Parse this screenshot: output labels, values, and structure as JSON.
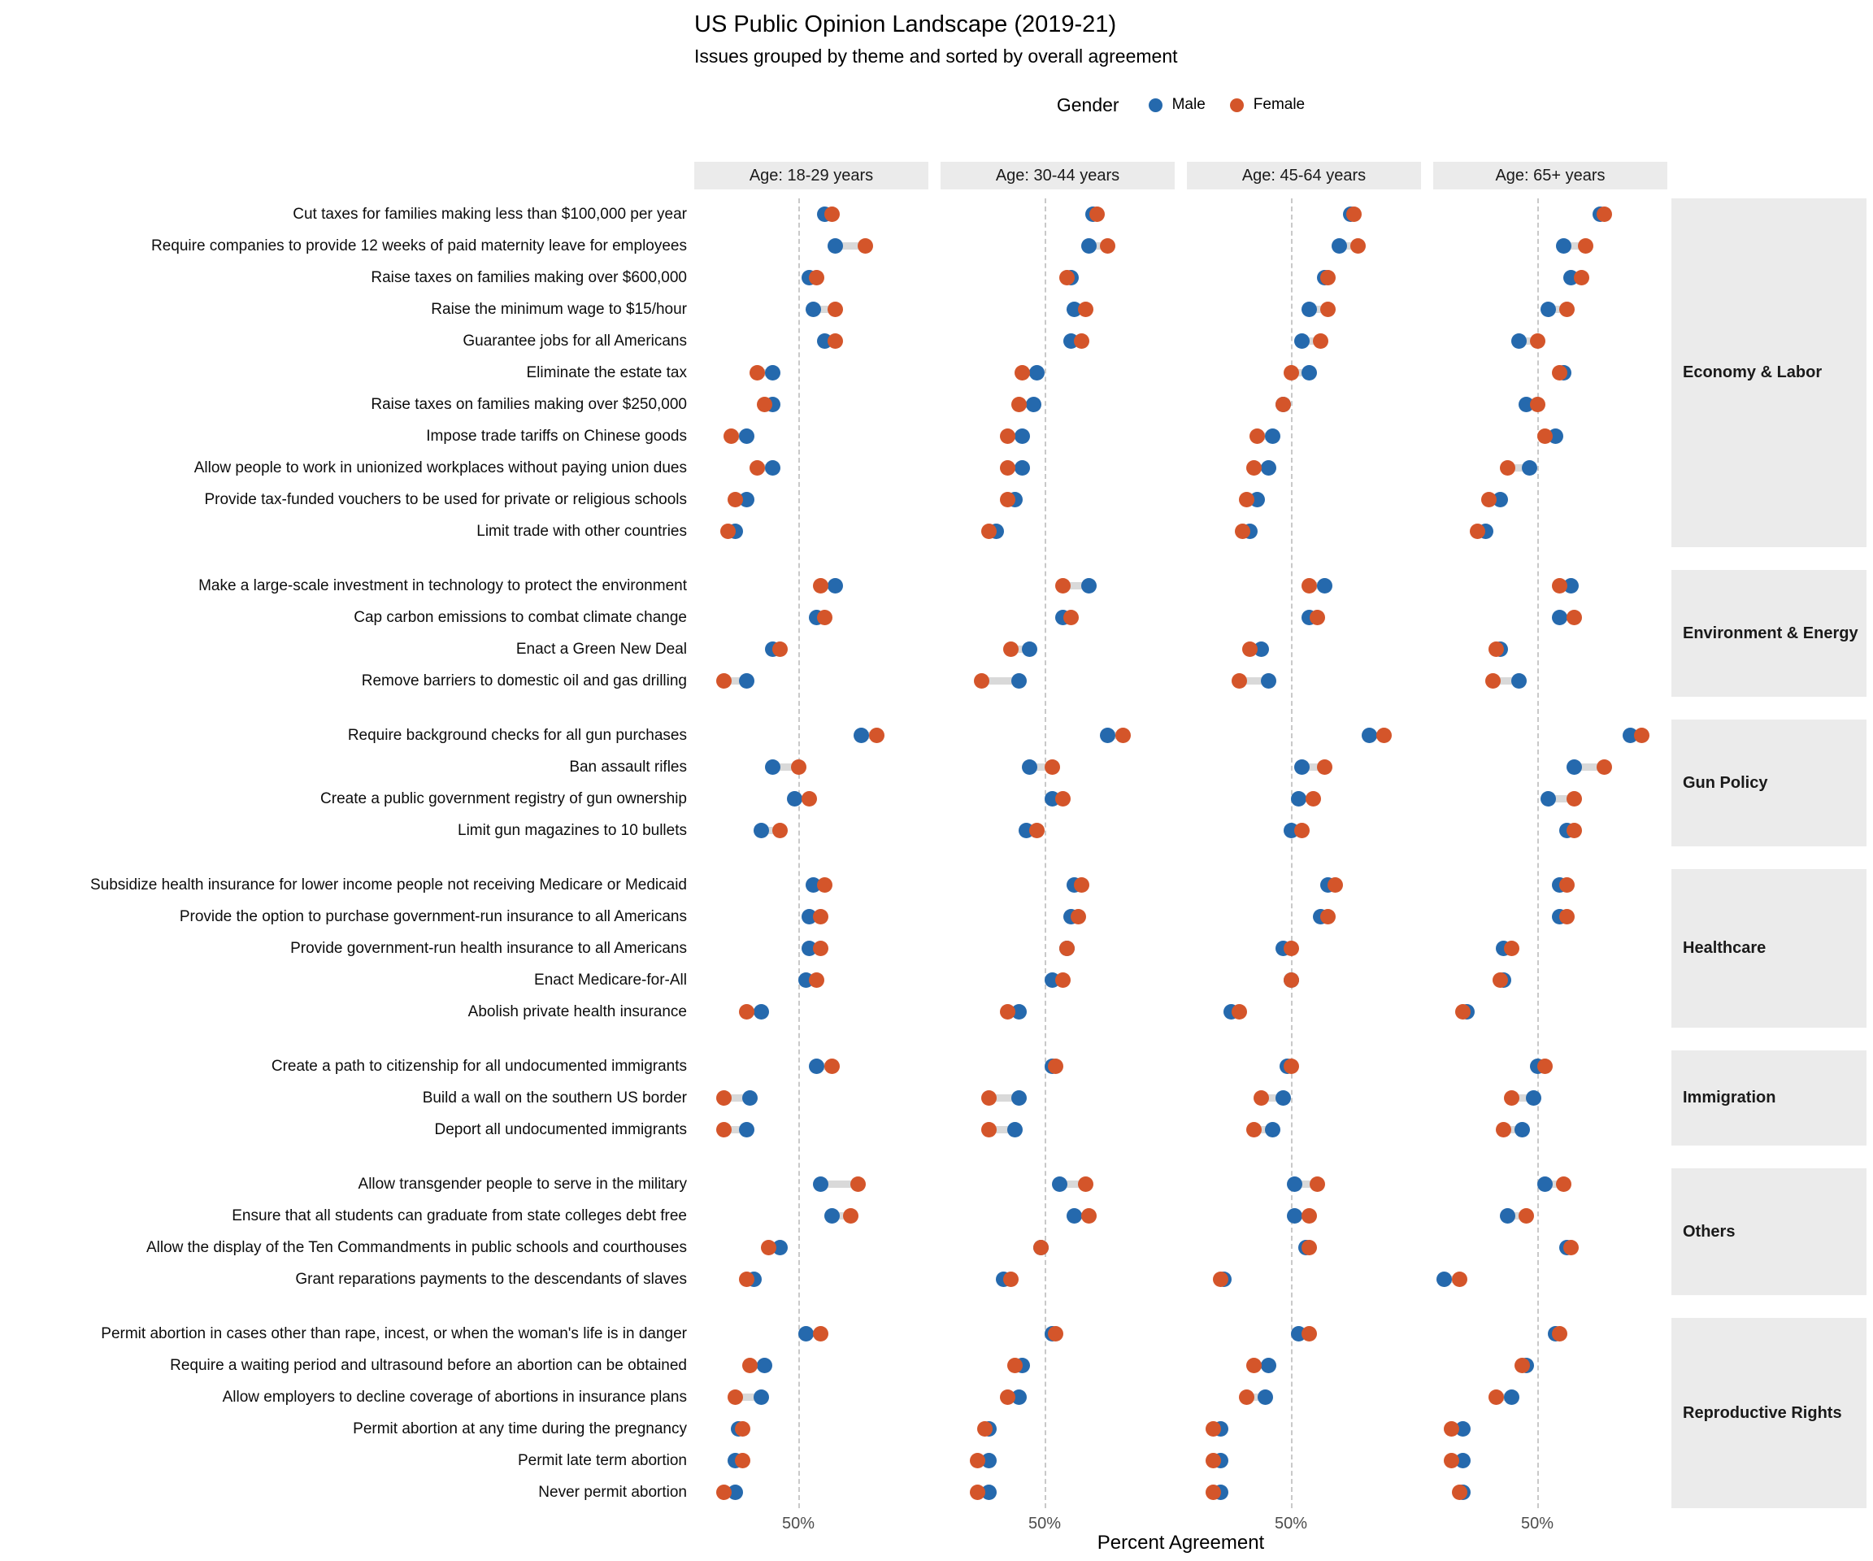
{
  "chart_data": {
    "type": "scatter",
    "variant": "faceted dumbbell dot plot, one row per issue, male vs female dots",
    "title": "US Public Opinion Landscape (2019-21)",
    "subtitle": "Issues grouped by theme and sorted by overall agreement",
    "legend": {
      "title": "Gender",
      "position": "top-center",
      "items": [
        {
          "label": "Male",
          "color": "#2569ad"
        },
        {
          "label": "Female",
          "color": "#d4552a"
        }
      ]
    },
    "facets": [
      "Age: 18-29 years",
      "Age: 30-44 years",
      "Age: 45-64 years",
      "Age: 65+ years"
    ],
    "x_axis": {
      "label": "Percent Agreement",
      "tick_labels": [
        "50%"
      ],
      "tick_value": 50,
      "range": [
        22,
        85
      ],
      "gridline": "vertical dashed at 50%"
    },
    "styles": {
      "connector_color": "#d9d9d9",
      "strip_bg": "#ebebeb",
      "grid_on": false
    },
    "groups": [
      {
        "theme": "Economy & Labor",
        "issues": [
          {
            "label": "Cut taxes for families making less than $100,000 per year",
            "male": [
              57,
              63,
              66,
              67
            ],
            "female": [
              59,
              64,
              67,
              68
            ]
          },
          {
            "label": "Require companies to provide 12 weeks of paid maternity leave for employees",
            "male": [
              60,
              62,
              63,
              57
            ],
            "female": [
              68,
              67,
              68,
              63
            ]
          },
          {
            "label": "Raise taxes on families making over $600,000",
            "male": [
              53,
              57,
              59,
              59
            ],
            "female": [
              55,
              56,
              60,
              62
            ]
          },
          {
            "label": "Raise the minimum wage to $15/hour",
            "male": [
              54,
              58,
              55,
              53
            ],
            "female": [
              60,
              61,
              60,
              58
            ]
          },
          {
            "label": "Guarantee jobs for all Americans",
            "male": [
              57,
              57,
              53,
              45
            ],
            "female": [
              60,
              60,
              58,
              50
            ]
          },
          {
            "label": "Eliminate the estate tax",
            "male": [
              43,
              48,
              55,
              57
            ],
            "female": [
              39,
              44,
              50,
              56
            ]
          },
          {
            "label": "Raise taxes on families making over $250,000",
            "male": [
              43,
              47,
              48,
              47
            ],
            "female": [
              41,
              43,
              48,
              50
            ]
          },
          {
            "label": "Impose trade tariffs on Chinese goods",
            "male": [
              36,
              44,
              45,
              55
            ],
            "female": [
              32,
              40,
              41,
              52
            ]
          },
          {
            "label": "Allow people to work in unionized workplaces without paying union dues",
            "male": [
              43,
              44,
              44,
              48
            ],
            "female": [
              39,
              40,
              40,
              42
            ]
          },
          {
            "label": "Provide tax-funded vouchers to be used for private or religious schools",
            "male": [
              36,
              42,
              41,
              40
            ],
            "female": [
              33,
              40,
              38,
              37
            ]
          },
          {
            "label": "Limit trade with other countries",
            "male": [
              33,
              37,
              39,
              36
            ],
            "female": [
              31,
              35,
              37,
              34
            ]
          }
        ]
      },
      {
        "theme": "Environment & Energy",
        "issues": [
          {
            "label": "Make a large-scale investment in technology to protect the environment",
            "male": [
              60,
              62,
              59,
              59
            ],
            "female": [
              56,
              55,
              55,
              56
            ]
          },
          {
            "label": "Cap carbon emissions to combat climate change",
            "male": [
              55,
              55,
              55,
              56
            ],
            "female": [
              57,
              57,
              57,
              60
            ]
          },
          {
            "label": "Enact a Green New Deal",
            "male": [
              43,
              46,
              42,
              40
            ],
            "female": [
              45,
              41,
              39,
              39
            ]
          },
          {
            "label": "Remove barriers to domestic oil and gas drilling",
            "male": [
              36,
              43,
              44,
              45
            ],
            "female": [
              30,
              33,
              36,
              38
            ]
          }
        ]
      },
      {
        "theme": "Gun Policy",
        "issues": [
          {
            "label": "Require background checks for all gun purchases",
            "male": [
              67,
              67,
              71,
              75
            ],
            "female": [
              71,
              71,
              75,
              78
            ]
          },
          {
            "label": "Ban assault rifles",
            "male": [
              43,
              46,
              53,
              60
            ],
            "female": [
              50,
              52,
              59,
              68
            ]
          },
          {
            "label": "Create a public government registry of gun ownership",
            "male": [
              49,
              52,
              52,
              53
            ],
            "female": [
              53,
              55,
              56,
              60
            ]
          },
          {
            "label": "Limit gun magazines to 10 bullets",
            "male": [
              40,
              45,
              50,
              58
            ],
            "female": [
              45,
              48,
              53,
              60
            ]
          }
        ]
      },
      {
        "theme": "Healthcare",
        "issues": [
          {
            "label": "Subsidize health insurance for lower income people not receiving Medicare or Medicaid",
            "male": [
              54,
              58,
              60,
              56
            ],
            "female": [
              57,
              60,
              62,
              58
            ]
          },
          {
            "label": "Provide the option to purchase government-run insurance to all Americans",
            "male": [
              53,
              57,
              58,
              56
            ],
            "female": [
              56,
              59,
              60,
              58
            ]
          },
          {
            "label": "Provide government-run health insurance to all Americans",
            "male": [
              53,
              56,
              48,
              41
            ],
            "female": [
              56,
              56,
              50,
              43
            ]
          },
          {
            "label": "Enact Medicare-for-All",
            "male": [
              52,
              52,
              50,
              41
            ],
            "female": [
              55,
              55,
              50,
              40
            ]
          },
          {
            "label": "Abolish private health insurance",
            "male": [
              40,
              43,
              34,
              31
            ],
            "female": [
              36,
              40,
              36,
              30
            ]
          }
        ]
      },
      {
        "theme": "Immigration",
        "issues": [
          {
            "label": "Create a path to citizenship for all undocumented immigrants",
            "male": [
              55,
              52,
              49,
              50
            ],
            "female": [
              59,
              53,
              50,
              52
            ]
          },
          {
            "label": "Build a wall on the southern US border",
            "male": [
              37,
              43,
              48,
              49
            ],
            "female": [
              30,
              35,
              42,
              43
            ]
          },
          {
            "label": "Deport all undocumented immigrants",
            "male": [
              36,
              42,
              45,
              46
            ],
            "female": [
              30,
              35,
              40,
              41
            ]
          }
        ]
      },
      {
        "theme": "Others",
        "issues": [
          {
            "label": "Allow transgender people to serve in the military",
            "male": [
              56,
              54,
              51,
              52
            ],
            "female": [
              66,
              61,
              57,
              57
            ]
          },
          {
            "label": "Ensure that all students can graduate from state colleges debt free",
            "male": [
              59,
              58,
              51,
              42
            ],
            "female": [
              64,
              62,
              55,
              47
            ]
          },
          {
            "label": "Allow the display of the Ten Commandments in public schools and courthouses",
            "male": [
              45,
              49,
              54,
              58
            ],
            "female": [
              42,
              49,
              55,
              59
            ]
          },
          {
            "label": "Grant reparations payments to the descendants of slaves",
            "male": [
              38,
              39,
              32,
              25
            ],
            "female": [
              36,
              41,
              31,
              29
            ]
          }
        ]
      },
      {
        "theme": "Reproductive Rights",
        "issues": [
          {
            "label": "Permit abortion in cases other than rape, incest, or when the woman's life is in danger",
            "male": [
              52,
              52,
              52,
              55
            ],
            "female": [
              56,
              53,
              55,
              56
            ]
          },
          {
            "label": "Require a waiting period and ultrasound before an abortion can be obtained",
            "male": [
              41,
              44,
              44,
              47
            ],
            "female": [
              37,
              42,
              40,
              46
            ]
          },
          {
            "label": "Allow employers to decline coverage of abortions in insurance plans",
            "male": [
              40,
              43,
              43,
              43
            ],
            "female": [
              33,
              40,
              38,
              39
            ]
          },
          {
            "label": "Permit abortion at any time during the pregnancy",
            "male": [
              34,
              35,
              31,
              30
            ],
            "female": [
              35,
              34,
              29,
              27
            ]
          },
          {
            "label": "Permit late term abortion",
            "male": [
              33,
              35,
              31,
              30
            ],
            "female": [
              35,
              32,
              29,
              27
            ]
          },
          {
            "label": "Never permit abortion",
            "male": [
              33,
              35,
              31,
              30
            ],
            "female": [
              30,
              32,
              29,
              29
            ]
          }
        ]
      }
    ]
  }
}
